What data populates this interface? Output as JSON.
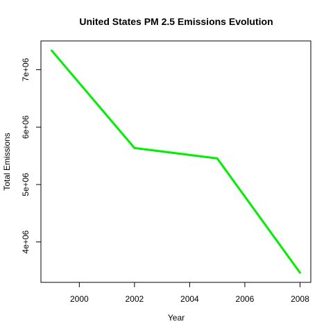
{
  "chart_data": {
    "type": "line",
    "title": "United States PM 2.5 Emissions Evolution",
    "xlabel": "Year",
    "ylabel": "Total Emissions",
    "x": [
      1999,
      2002,
      2005,
      2008
    ],
    "series": [
      {
        "values": [
          7332967,
          5635780,
          5454703,
          3464206
        ],
        "color": "#00ee00"
      }
    ],
    "xlim": [
      1999,
      2008
    ],
    "ylim": [
      3464206,
      7332967
    ],
    "xticks": [
      2000,
      2002,
      2004,
      2006,
      2008
    ],
    "xtick_labels": [
      "2000",
      "2002",
      "2004",
      "2006",
      "2008"
    ],
    "yticks": [
      4000000,
      5000000,
      6000000,
      7000000
    ],
    "ytick_labels": [
      "4e+06",
      "5e+06",
      "6e+06",
      "7e+06"
    ],
    "grid": false,
    "legend": "none"
  }
}
